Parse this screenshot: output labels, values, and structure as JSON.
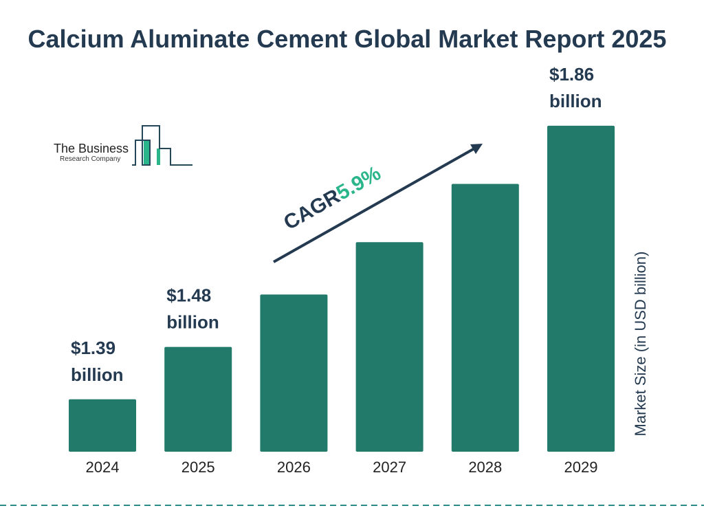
{
  "title": "Calcium Aluminate Cement Global Market Report 2025",
  "logo": {
    "line1": "The Business",
    "line2": "Research Company"
  },
  "chart_data": {
    "type": "bar",
    "title": "Calcium Aluminate Cement Global Market Report 2025",
    "categories": [
      "2024",
      "2025",
      "2026",
      "2027",
      "2028",
      "2029"
    ],
    "values": [
      1.39,
      1.48,
      1.57,
      1.66,
      1.76,
      1.86
    ],
    "data_labels": [
      {
        "category": "2024",
        "value": "$1.39",
        "unit": "billion"
      },
      {
        "category": "2025",
        "value": "$1.48",
        "unit": "billion"
      },
      {
        "category": "2029",
        "value": "$1.86",
        "unit": "billion"
      }
    ],
    "xlabel": "",
    "ylabel": "Market Size (in USD billion)",
    "ylim": [
      1.3,
      1.9
    ],
    "grid": false,
    "annotation": {
      "label": "CAGR",
      "value": "5.9%"
    },
    "colors": {
      "bar": "#217a6a",
      "text": "#243a50",
      "accent": "#2bb58a",
      "divider": "#2a8a86"
    }
  }
}
